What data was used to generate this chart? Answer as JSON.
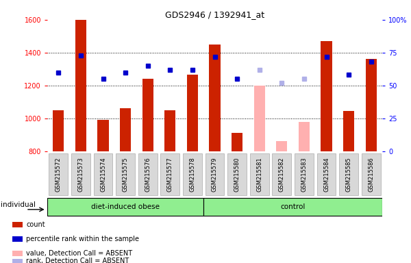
{
  "title": "GDS2946 / 1392941_at",
  "samples": [
    "GSM215572",
    "GSM215573",
    "GSM215574",
    "GSM215575",
    "GSM215576",
    "GSM215577",
    "GSM215578",
    "GSM215579",
    "GSM215580",
    "GSM215581",
    "GSM215582",
    "GSM215583",
    "GSM215584",
    "GSM215585",
    "GSM215586"
  ],
  "bar_values": [
    1050,
    1600,
    990,
    1060,
    1240,
    1050,
    1265,
    1450,
    910,
    null,
    null,
    null,
    1470,
    1045,
    1360
  ],
  "bar_absent_values": [
    null,
    null,
    null,
    null,
    null,
    null,
    null,
    null,
    null,
    1200,
    860,
    980,
    null,
    null,
    null
  ],
  "rank_values": [
    60,
    73,
    55,
    60,
    65,
    62,
    62,
    72,
    55,
    null,
    null,
    null,
    72,
    58,
    68
  ],
  "rank_absent_values": [
    null,
    null,
    null,
    null,
    null,
    null,
    null,
    null,
    null,
    62,
    52,
    55,
    null,
    null,
    null
  ],
  "absent_flags": [
    false,
    false,
    false,
    false,
    false,
    false,
    false,
    false,
    false,
    true,
    true,
    true,
    false,
    false,
    false
  ],
  "ylim_left": [
    800,
    1600
  ],
  "ylim_right": [
    0,
    100
  ],
  "yticks_left": [
    800,
    1000,
    1200,
    1400,
    1600
  ],
  "yticks_right": [
    0,
    25,
    50,
    75,
    100
  ],
  "bar_color": "#cc2200",
  "bar_absent_color": "#ffb0b0",
  "rank_color": "#0000cc",
  "rank_absent_color": "#b0b0e8",
  "group1_name": "diet-induced obese",
  "group1_count": 7,
  "group2_name": "control",
  "group2_count": 8,
  "group_color": "#90ee90",
  "legend_items": [
    {
      "label": "count",
      "color": "#cc2200"
    },
    {
      "label": "percentile rank within the sample",
      "color": "#0000cc"
    },
    {
      "label": "value, Detection Call = ABSENT",
      "color": "#ffb0b0"
    },
    {
      "label": "rank, Detection Call = ABSENT",
      "color": "#b0b0e8"
    }
  ]
}
